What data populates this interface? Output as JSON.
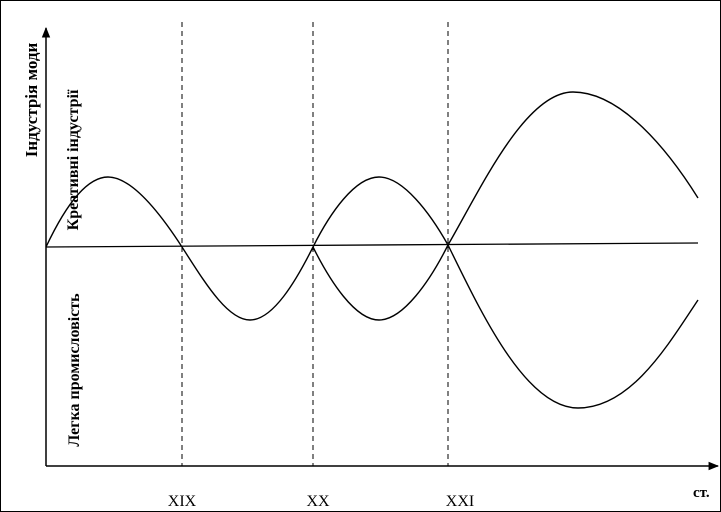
{
  "axis": {
    "y_label": "Індустрія моди",
    "x_label": "ст."
  },
  "regions": {
    "upper": "Креативні індустрії",
    "lower": "Легка промисловість"
  },
  "centuries": [
    "XIX",
    "XX",
    "XXI"
  ]
}
